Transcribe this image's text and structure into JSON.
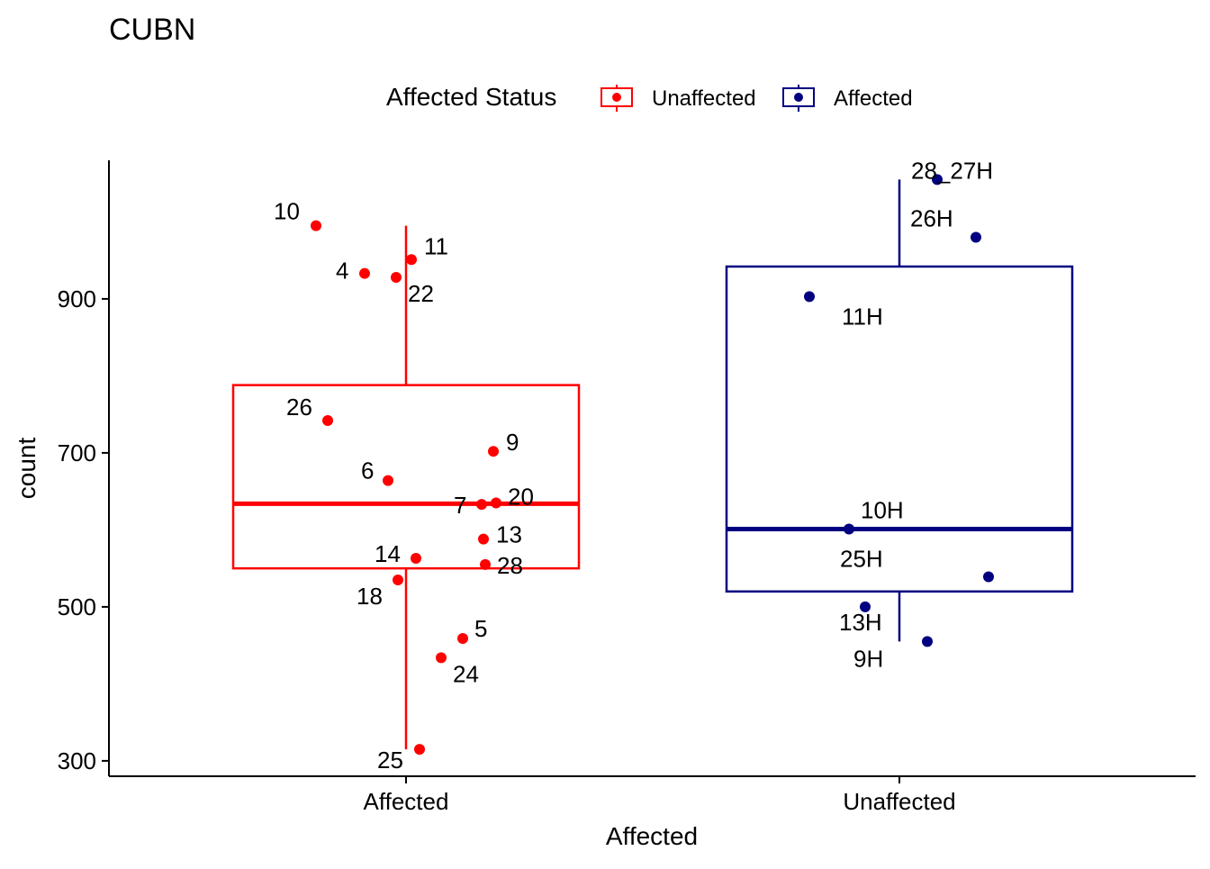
{
  "chart_data": {
    "type": "boxplot",
    "title": "CUBN",
    "xlabel": "Affected",
    "ylabel": "count",
    "ylim": [
      280,
      1080
    ],
    "yticks": [
      300,
      500,
      700,
      900
    ],
    "categories": [
      "Affected",
      "Unaffected"
    ],
    "legend": {
      "title": "Affected Status",
      "position": "top",
      "entries": [
        {
          "label": "Unaffected",
          "color": "#FF0000"
        },
        {
          "label": "Affected",
          "color": "#000080"
        }
      ]
    },
    "series": [
      {
        "name": "Unaffected",
        "category": "Affected",
        "color": "#FF0000",
        "box": {
          "whisker_low": 315,
          "q1": 550,
          "median": 634,
          "q3": 788,
          "whisker_high": 995
        },
        "points": [
          {
            "label": "10",
            "y": 995
          },
          {
            "label": "11",
            "y": 951
          },
          {
            "label": "4",
            "y": 933
          },
          {
            "label": "22",
            "y": 928
          },
          {
            "label": "26",
            "y": 742
          },
          {
            "label": "9",
            "y": 702
          },
          {
            "label": "6",
            "y": 664
          },
          {
            "label": "20",
            "y": 635
          },
          {
            "label": "7",
            "y": 633
          },
          {
            "label": "13",
            "y": 588
          },
          {
            "label": "14",
            "y": 563
          },
          {
            "label": "28",
            "y": 555
          },
          {
            "label": "18",
            "y": 535
          },
          {
            "label": "5",
            "y": 459
          },
          {
            "label": "24",
            "y": 434
          },
          {
            "label": "25",
            "y": 315
          }
        ]
      },
      {
        "name": "Affected",
        "category": "Unaffected",
        "color": "#000080",
        "box": {
          "whisker_low": 455,
          "q1": 520,
          "median": 601,
          "q3": 942,
          "whisker_high": 1055
        },
        "points": [
          {
            "label": "28_27H",
            "y": 1055
          },
          {
            "label": "26H",
            "y": 980
          },
          {
            "label": "11H",
            "y": 903
          },
          {
            "label": "10H",
            "y": 601
          },
          {
            "label": "25H",
            "y": 539
          },
          {
            "label": "13H",
            "y": 500
          },
          {
            "label": "9H",
            "y": 455
          }
        ]
      }
    ]
  }
}
